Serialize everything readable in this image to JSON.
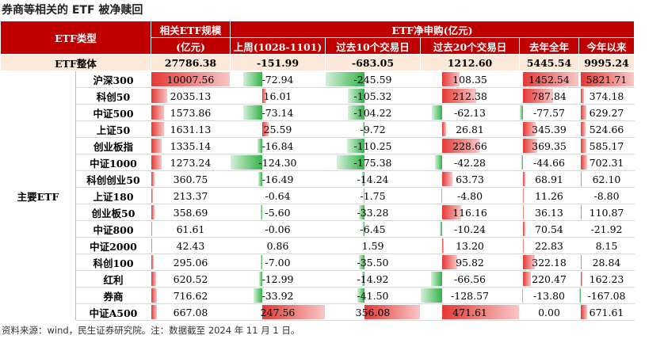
{
  "title": "券商等相关的 ETF 被净赎回",
  "table": {
    "header": {
      "type": "ETF类型",
      "size": "相关ETF规模",
      "size_unit": "(亿元)",
      "flow": "ETF净申购(亿元)",
      "periods": [
        "上周(1028-1101)",
        "过去10个交易日",
        "过去20个交易日",
        "去年全年",
        "今年以来"
      ]
    },
    "total": {
      "name": "ETF整体",
      "values": [
        "27786.38",
        "-151.99",
        "-683.05",
        "1212.60",
        "5445.54",
        "9995.24"
      ]
    },
    "group": "主要ETF",
    "rows": [
      {
        "name": "沪深300",
        "values": [
          "10007.56",
          "-72.94",
          "-245.59",
          "108.35",
          "1452.54",
          "5821.71"
        ]
      },
      {
        "name": "科创50",
        "values": [
          "2035.13",
          "16.01",
          "-105.32",
          "212.38",
          "787.84",
          "374.18"
        ]
      },
      {
        "name": "中证500",
        "values": [
          "1573.86",
          "-73.14",
          "-104.22",
          "-62.13",
          "-77.57",
          "629.27"
        ]
      },
      {
        "name": "上证50",
        "values": [
          "1631.13",
          "25.59",
          "-9.72",
          "26.81",
          "345.39",
          "524.66"
        ]
      },
      {
        "name": "创业板指",
        "values": [
          "1335.14",
          "-16.84",
          "-110.25",
          "228.66",
          "369.35",
          "585.17"
        ]
      },
      {
        "name": "中证1000",
        "values": [
          "1273.24",
          "-124.30",
          "-175.38",
          "-42.28",
          "-44.66",
          "702.31"
        ]
      },
      {
        "name": "科创创业50",
        "values": [
          "360.75",
          "-16.49",
          "-14.24",
          "63.73",
          "68.91",
          "62.10"
        ]
      },
      {
        "name": "上证180",
        "values": [
          "213.37",
          "-0.64",
          "-1.75",
          "-4.80",
          "11.26",
          "-8.80"
        ]
      },
      {
        "name": "创业板50",
        "values": [
          "358.69",
          "-5.60",
          "-33.28",
          "116.16",
          "36.13",
          "110.87"
        ]
      },
      {
        "name": "中证800",
        "values": [
          "61.61",
          "-0.06",
          "-6.45",
          "-10.24",
          "70.54",
          "-21.92"
        ]
      },
      {
        "name": "中证2000",
        "values": [
          "42.43",
          "0.86",
          "1.59",
          "13.20",
          "22.83",
          "8.15"
        ]
      },
      {
        "name": "科创100",
        "values": [
          "295.06",
          "-7.00",
          "-35.50",
          "95.82",
          "322.18",
          "28.84"
        ]
      },
      {
        "name": "红利",
        "values": [
          "620.52",
          "-12.99",
          "-14.92",
          "-66.56",
          "220.47",
          "162.23"
        ]
      },
      {
        "name": "券商",
        "values": [
          "716.62",
          "-33.92",
          "-41.50",
          "-128.57",
          "-13.80",
          "-167.08"
        ]
      },
      {
        "name": "中证A500",
        "values": [
          "667.08",
          "247.56",
          "356.08",
          "471.61",
          "0.00",
          "671.61"
        ]
      }
    ]
  },
  "footer": "资料来源：wind，民生证券研究院。注：数据截至 2024 年 11 月 1 日。"
}
